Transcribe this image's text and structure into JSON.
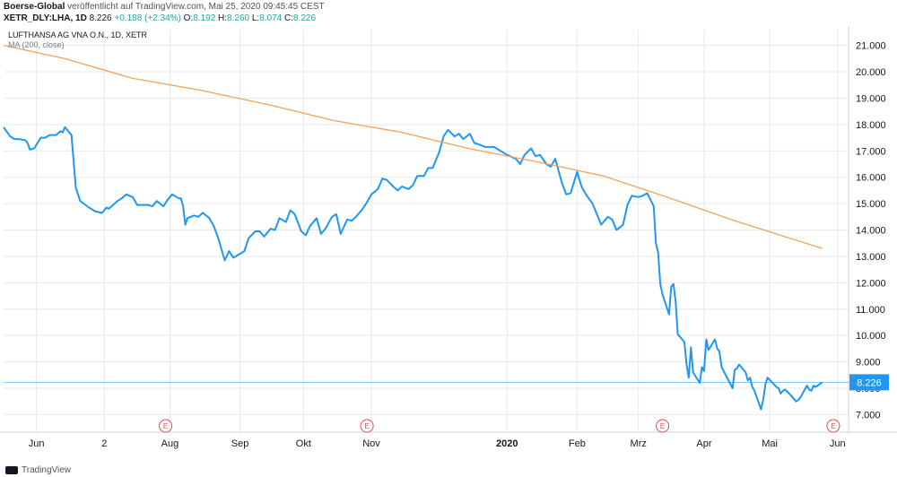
{
  "header": {
    "line1_bold": "Boerse-Global",
    "line1_rest": " veröffentlicht auf TradingView.com, Mai 25, 2020 09:45:45 CEST",
    "symbol": "XETR_DLY:LHA, 1D",
    "last": "8.226",
    "change": "+0.188 (+2.34%)",
    "o_label": "O:",
    "o": "8.192",
    "h_label": "H:",
    "h": "8.260",
    "l_label": "L:",
    "l": "8.074",
    "c_label": "C:",
    "c": "8.226"
  },
  "legend": {
    "title": "LUFTHANSA AG VNA O.N., 1D, XETR",
    "ma": "MA (200, close)"
  },
  "footer": {
    "brand": "TradingView"
  },
  "colors": {
    "price": "#2196f3",
    "ma": "#f5a15c",
    "grid": "#e6e9ee",
    "axis_text": "#131722",
    "last_tag": "#2196f3",
    "earnings": "#e04d4d"
  },
  "chart_data": {
    "type": "line",
    "title": "LUFTHANSA AG VNA O.N., 1D, XETR",
    "ylim": [
      6.3,
      21.6
    ],
    "grid": true,
    "y_ticks": [
      7,
      8,
      9,
      10,
      11,
      12,
      13,
      14,
      15,
      16,
      17,
      18,
      19,
      20,
      21
    ],
    "y_tick_labels": [
      "7.000",
      "8.000",
      "9.000",
      "10.000",
      "11.000",
      "12.000",
      "13.000",
      "14.000",
      "15.000",
      "16.000",
      "17.000",
      "18.000",
      "19.000",
      "20.000",
      "21.000"
    ],
    "x_ticks": [
      {
        "label": "Jun",
        "date": "2019-06-01"
      },
      {
        "label": "2",
        "date": "2019-07-02"
      },
      {
        "label": "Aug",
        "date": "2019-08-01"
      },
      {
        "label": "Sep",
        "date": "2019-09-02"
      },
      {
        "label": "Okt",
        "date": "2019-10-01"
      },
      {
        "label": "Nov",
        "date": "2019-11-01"
      },
      {
        "label": "2020",
        "date": "2020-01-02",
        "bold": true
      },
      {
        "label": "Feb",
        "date": "2020-02-03"
      },
      {
        "label": "Mrz",
        "date": "2020-03-02"
      },
      {
        "label": "Apr",
        "date": "2020-04-01"
      },
      {
        "label": "Mai",
        "date": "2020-05-01"
      },
      {
        "label": "Jun",
        "date": "2020-06-01"
      }
    ],
    "last_value": 8.226,
    "last_value_label": "8.226",
    "earnings_marker_label": "E",
    "earnings_markers": [
      "2019-07-30",
      "2019-10-30",
      "2020-03-13",
      "2020-05-30"
    ],
    "series": [
      {
        "name": "LUFTHANSA AG VNA O.N.",
        "points": [
          [
            "2019-05-17",
            17.9
          ],
          [
            "2019-05-20",
            17.55
          ],
          [
            "2019-05-22",
            17.45
          ],
          [
            "2019-05-24",
            17.45
          ],
          [
            "2019-05-27",
            17.4
          ],
          [
            "2019-05-28",
            17.3
          ],
          [
            "2019-05-29",
            17.05
          ],
          [
            "2019-05-31",
            17.1
          ],
          [
            "2019-06-03",
            17.5
          ],
          [
            "2019-06-05",
            17.5
          ],
          [
            "2019-06-07",
            17.6
          ],
          [
            "2019-06-10",
            17.6
          ],
          [
            "2019-06-12",
            17.75
          ],
          [
            "2019-06-13",
            17.7
          ],
          [
            "2019-06-14",
            17.9
          ],
          [
            "2019-06-17",
            17.6
          ],
          [
            "2019-06-19",
            15.6
          ],
          [
            "2019-06-21",
            15.1
          ],
          [
            "2019-06-25",
            14.85
          ],
          [
            "2019-06-28",
            14.7
          ],
          [
            "2019-07-01",
            14.65
          ],
          [
            "2019-07-03",
            14.85
          ],
          [
            "2019-07-04",
            14.8
          ],
          [
            "2019-07-08",
            15.1
          ],
          [
            "2019-07-10",
            15.2
          ],
          [
            "2019-07-12",
            15.35
          ],
          [
            "2019-07-15",
            15.25
          ],
          [
            "2019-07-17",
            14.95
          ],
          [
            "2019-07-19",
            14.95
          ],
          [
            "2019-07-22",
            14.95
          ],
          [
            "2019-07-24",
            14.9
          ],
          [
            "2019-07-26",
            15.1
          ],
          [
            "2019-07-29",
            14.9
          ],
          [
            "2019-07-31",
            15.15
          ],
          [
            "2019-08-02",
            15.35
          ],
          [
            "2019-08-05",
            15.2
          ],
          [
            "2019-08-06",
            15.2
          ],
          [
            "2019-08-07",
            14.9
          ],
          [
            "2019-08-08",
            14.2
          ],
          [
            "2019-08-09",
            14.45
          ],
          [
            "2019-08-12",
            14.55
          ],
          [
            "2019-08-14",
            14.5
          ],
          [
            "2019-08-16",
            14.65
          ],
          [
            "2019-08-19",
            14.45
          ],
          [
            "2019-08-21",
            14.15
          ],
          [
            "2019-08-23",
            13.7
          ],
          [
            "2019-08-26",
            12.85
          ],
          [
            "2019-08-28",
            13.2
          ],
          [
            "2019-08-30",
            12.95
          ],
          [
            "2019-09-02",
            13.1
          ],
          [
            "2019-09-04",
            13.2
          ],
          [
            "2019-09-06",
            13.7
          ],
          [
            "2019-09-09",
            13.95
          ],
          [
            "2019-09-11",
            13.95
          ],
          [
            "2019-09-13",
            13.75
          ],
          [
            "2019-09-16",
            14.05
          ],
          [
            "2019-09-18",
            14.0
          ],
          [
            "2019-09-20",
            14.45
          ],
          [
            "2019-09-23",
            14.3
          ],
          [
            "2019-09-25",
            14.75
          ],
          [
            "2019-09-27",
            14.6
          ],
          [
            "2019-09-30",
            13.95
          ],
          [
            "2019-10-02",
            13.8
          ],
          [
            "2019-10-04",
            14.15
          ],
          [
            "2019-10-07",
            14.45
          ],
          [
            "2019-10-09",
            13.85
          ],
          [
            "2019-10-11",
            14.05
          ],
          [
            "2019-10-14",
            14.5
          ],
          [
            "2019-10-16",
            14.6
          ],
          [
            "2019-10-18",
            13.85
          ],
          [
            "2019-10-21",
            14.4
          ],
          [
            "2019-10-23",
            14.35
          ],
          [
            "2019-10-25",
            14.5
          ],
          [
            "2019-10-28",
            14.8
          ],
          [
            "2019-10-30",
            15.05
          ],
          [
            "2019-11-01",
            15.35
          ],
          [
            "2019-11-04",
            15.55
          ],
          [
            "2019-11-06",
            15.95
          ],
          [
            "2019-11-08",
            15.9
          ],
          [
            "2019-11-11",
            15.65
          ],
          [
            "2019-11-13",
            15.5
          ],
          [
            "2019-11-15",
            15.65
          ],
          [
            "2019-11-18",
            15.55
          ],
          [
            "2019-11-20",
            15.7
          ],
          [
            "2019-11-22",
            16.05
          ],
          [
            "2019-11-25",
            16.05
          ],
          [
            "2019-11-27",
            16.35
          ],
          [
            "2019-11-29",
            16.35
          ],
          [
            "2019-12-02",
            16.95
          ],
          [
            "2019-12-04",
            17.55
          ],
          [
            "2019-12-06",
            17.8
          ],
          [
            "2019-12-09",
            17.55
          ],
          [
            "2019-12-11",
            17.65
          ],
          [
            "2019-12-13",
            17.45
          ],
          [
            "2019-12-16",
            17.65
          ],
          [
            "2019-12-18",
            17.3
          ],
          [
            "2019-12-20",
            17.25
          ],
          [
            "2019-12-23",
            17.15
          ],
          [
            "2019-12-27",
            17.15
          ],
          [
            "2019-12-30",
            17.0
          ],
          [
            "2020-01-02",
            16.85
          ],
          [
            "2020-01-06",
            16.7
          ],
          [
            "2020-01-08",
            16.5
          ],
          [
            "2020-01-10",
            16.85
          ],
          [
            "2020-01-13",
            17.1
          ],
          [
            "2020-01-15",
            16.8
          ],
          [
            "2020-01-17",
            16.85
          ],
          [
            "2020-01-20",
            16.5
          ],
          [
            "2020-01-22",
            16.4
          ],
          [
            "2020-01-24",
            16.7
          ],
          [
            "2020-01-27",
            15.8
          ],
          [
            "2020-01-29",
            15.35
          ],
          [
            "2020-01-31",
            15.4
          ],
          [
            "2020-02-03",
            16.2
          ],
          [
            "2020-02-05",
            15.65
          ],
          [
            "2020-02-07",
            15.35
          ],
          [
            "2020-02-10",
            15.0
          ],
          [
            "2020-02-12",
            14.6
          ],
          [
            "2020-02-14",
            14.2
          ],
          [
            "2020-02-17",
            14.5
          ],
          [
            "2020-02-19",
            14.4
          ],
          [
            "2020-02-21",
            14.0
          ],
          [
            "2020-02-24",
            14.2
          ],
          [
            "2020-02-26",
            14.95
          ],
          [
            "2020-02-28",
            15.3
          ],
          [
            "2020-03-02",
            15.25
          ],
          [
            "2020-03-04",
            15.3
          ],
          [
            "2020-03-06",
            15.4
          ],
          [
            "2020-03-09",
            14.9
          ],
          [
            "2020-03-10",
            13.5
          ],
          [
            "2020-03-11",
            13.15
          ],
          [
            "2020-03-12",
            11.95
          ],
          [
            "2020-03-13",
            11.55
          ],
          [
            "2020-03-16",
            10.8
          ],
          [
            "2020-03-17",
            11.85
          ],
          [
            "2020-03-18",
            11.95
          ],
          [
            "2020-03-19",
            11.3
          ],
          [
            "2020-03-20",
            10.05
          ],
          [
            "2020-03-23",
            9.75
          ],
          [
            "2020-03-24",
            8.9
          ],
          [
            "2020-03-25",
            8.4
          ],
          [
            "2020-03-26",
            9.55
          ],
          [
            "2020-03-27",
            8.6
          ],
          [
            "2020-03-30",
            8.2
          ],
          [
            "2020-03-31",
            8.8
          ],
          [
            "2020-04-01",
            8.65
          ],
          [
            "2020-04-02",
            9.85
          ],
          [
            "2020-04-03",
            9.45
          ],
          [
            "2020-04-06",
            9.85
          ],
          [
            "2020-04-07",
            9.5
          ],
          [
            "2020-04-08",
            9.4
          ],
          [
            "2020-04-09",
            8.8
          ],
          [
            "2020-04-14",
            8.0
          ],
          [
            "2020-04-15",
            8.7
          ],
          [
            "2020-04-16",
            8.75
          ],
          [
            "2020-04-17",
            8.9
          ],
          [
            "2020-04-20",
            8.6
          ],
          [
            "2020-04-21",
            8.3
          ],
          [
            "2020-04-22",
            8.4
          ],
          [
            "2020-04-23",
            8.05
          ],
          [
            "2020-04-24",
            7.9
          ],
          [
            "2020-04-27",
            7.2
          ],
          [
            "2020-04-28",
            7.55
          ],
          [
            "2020-04-29",
            8.15
          ],
          [
            "2020-04-30",
            8.4
          ],
          [
            "2020-05-04",
            8.05
          ],
          [
            "2020-05-05",
            8.0
          ],
          [
            "2020-05-06",
            7.8
          ],
          [
            "2020-05-07",
            7.9
          ],
          [
            "2020-05-08",
            7.95
          ],
          [
            "2020-05-11",
            7.7
          ],
          [
            "2020-05-12",
            7.6
          ],
          [
            "2020-05-13",
            7.5
          ],
          [
            "2020-05-14",
            7.55
          ],
          [
            "2020-05-15",
            7.65
          ],
          [
            "2020-05-18",
            8.1
          ],
          [
            "2020-05-19",
            7.95
          ],
          [
            "2020-05-20",
            7.9
          ],
          [
            "2020-05-21",
            8.1
          ],
          [
            "2020-05-22",
            8.05
          ],
          [
            "2020-05-25",
            8.226
          ]
        ]
      },
      {
        "name": "MA (200, close)",
        "points": [
          [
            "2019-05-17",
            21.0
          ],
          [
            "2019-06-14",
            20.5
          ],
          [
            "2019-07-15",
            19.75
          ],
          [
            "2019-08-15",
            19.3
          ],
          [
            "2019-09-15",
            18.75
          ],
          [
            "2019-10-15",
            18.15
          ],
          [
            "2019-11-15",
            17.7
          ],
          [
            "2019-12-15",
            17.1
          ],
          [
            "2020-01-15",
            16.6
          ],
          [
            "2020-02-15",
            16.05
          ],
          [
            "2020-03-15",
            15.25
          ],
          [
            "2020-04-15",
            14.35
          ],
          [
            "2020-05-25",
            13.3
          ]
        ]
      }
    ]
  }
}
